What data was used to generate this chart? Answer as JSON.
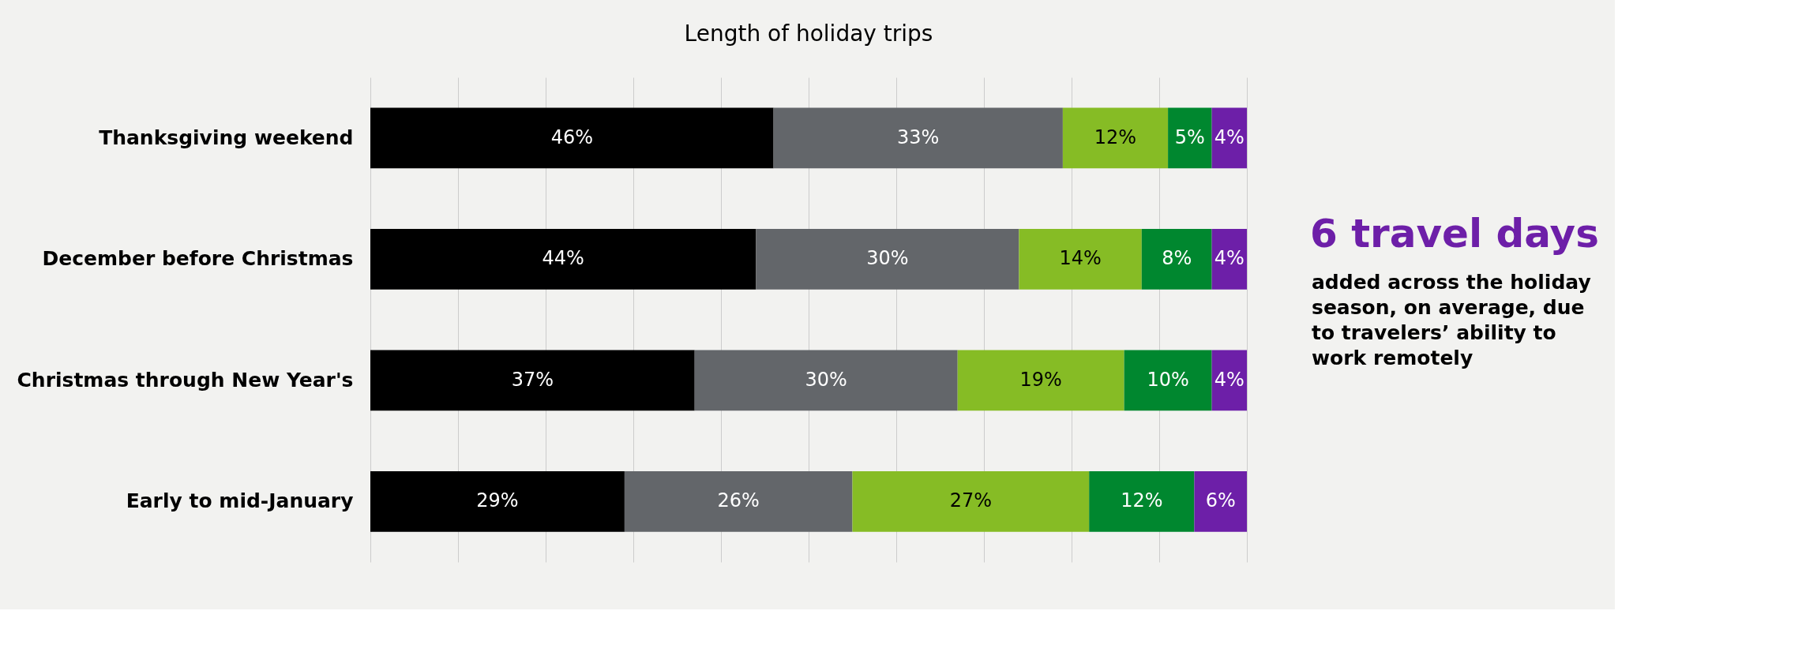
{
  "chart_data": {
    "type": "bar",
    "orientation": "horizontal",
    "stacked": true,
    "title": "Length of holiday trips",
    "categories": [
      "Thanksgiving weekend",
      "December before Christmas",
      "Christmas through New Year's",
      "Early to mid-January"
    ],
    "series": [
      {
        "color": "#000000",
        "values": [
          46,
          44,
          37,
          29
        ],
        "value_labels": [
          "46%",
          "44%",
          "37%",
          "29%"
        ]
      },
      {
        "color": "#63666a",
        "values": [
          33,
          30,
          30,
          26
        ],
        "value_labels": [
          "33%",
          "30%",
          "30%",
          "26%"
        ]
      },
      {
        "color": "#86bc25",
        "values": [
          12,
          14,
          19,
          27
        ],
        "value_labels": [
          "12%",
          "14%",
          "19%",
          "27%"
        ]
      },
      {
        "color": "#00872f",
        "values": [
          5,
          8,
          10,
          12
        ],
        "value_labels": [
          "5%",
          "8%",
          "10%",
          "12%"
        ]
      },
      {
        "color": "#6d1fa8",
        "values": [
          4,
          4,
          4,
          6
        ],
        "value_labels": [
          "4%",
          "4%",
          "4%",
          "6%"
        ]
      }
    ],
    "grid": "x",
    "tick_labels": "y",
    "legend": false,
    "annotations": [
      "6 travel days",
      "added across the holiday season, on average, due to travelers’ ability to work remotely"
    ]
  }
}
